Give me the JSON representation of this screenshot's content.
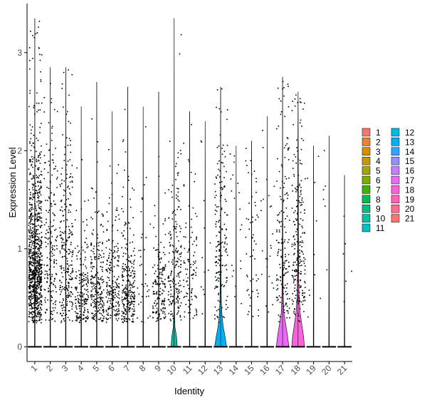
{
  "chart_data": {
    "type": "violin",
    "title": "",
    "xlabel": "Identity",
    "ylabel": "Expression Level",
    "ylim": [
      -0.15,
      3.5
    ],
    "yticks": [
      0,
      1,
      2,
      3
    ],
    "ytick_labels": [
      "0",
      "1",
      "2",
      "3"
    ],
    "grid": false,
    "legend": {
      "position": "right",
      "columns": 2
    },
    "categories": [
      {
        "name": "1",
        "color": "#F8766D",
        "max": 3.35,
        "n_expr": 900,
        "center": 0.85,
        "spread": 0.55,
        "violin": [
          [
            0,
            0.04
          ]
        ]
      },
      {
        "name": "2",
        "color": "#EA8331",
        "max": 2.85,
        "n_expr": 190,
        "center": 0.85,
        "spread": 0.6,
        "violin": [
          [
            0,
            0.04
          ]
        ]
      },
      {
        "name": "3",
        "color": "#D89000",
        "max": 2.85,
        "n_expr": 260,
        "center": 0.9,
        "spread": 0.6,
        "violin": [
          [
            0,
            0.04
          ]
        ]
      },
      {
        "name": "4",
        "color": "#C09B00",
        "max": 2.45,
        "n_expr": 190,
        "center": 0.55,
        "spread": 0.5,
        "violin": [
          [
            0,
            0.04
          ]
        ]
      },
      {
        "name": "5",
        "color": "#A3A500",
        "max": 2.7,
        "n_expr": 230,
        "center": 0.6,
        "spread": 0.5,
        "violin": [
          [
            0,
            0.04
          ]
        ]
      },
      {
        "name": "6",
        "color": "#7CAE00",
        "max": 2.4,
        "n_expr": 210,
        "center": 0.6,
        "spread": 0.5,
        "violin": [
          [
            0,
            0.04
          ]
        ]
      },
      {
        "name": "7",
        "color": "#39B600",
        "max": 2.65,
        "n_expr": 260,
        "center": 0.6,
        "spread": 0.5,
        "violin": [
          [
            0,
            0.04
          ]
        ]
      },
      {
        "name": "8",
        "color": "#00BB4E",
        "max": 2.45,
        "n_expr": 35,
        "center": 0.8,
        "spread": 0.6,
        "violin": [
          [
            0,
            0.04
          ]
        ]
      },
      {
        "name": "9",
        "color": "#00BF7D",
        "max": 2.6,
        "n_expr": 170,
        "center": 0.6,
        "spread": 0.45,
        "violin": [
          [
            0,
            0.04
          ]
        ]
      },
      {
        "name": "10",
        "color": "#00C1A3",
        "max": 3.35,
        "n_expr": 200,
        "center": 0.75,
        "spread": 0.55,
        "violin": [
          [
            0,
            0.45
          ],
          [
            0.1,
            0.35
          ],
          [
            0.2,
            0.12
          ],
          [
            0.35,
            0.05
          ],
          [
            0.6,
            0.03
          ],
          [
            1.0,
            0.015
          ],
          [
            2.0,
            0.01
          ],
          [
            3.35,
            0.0
          ]
        ]
      },
      {
        "name": "11",
        "color": "#00BFC4",
        "max": 2.4,
        "n_expr": 100,
        "center": 0.75,
        "spread": 0.5,
        "violin": [
          [
            0,
            0.04
          ]
        ]
      },
      {
        "name": "12",
        "color": "#00BAE0",
        "max": 2.3,
        "n_expr": 12,
        "center": 1.2,
        "spread": 0.6,
        "violin": [
          [
            0,
            0.04
          ]
        ]
      },
      {
        "name": "13",
        "color": "#00B0F6",
        "max": 2.65,
        "n_expr": 170,
        "center": 1.0,
        "spread": 0.55,
        "violin": [
          [
            0,
            0.85
          ],
          [
            0.1,
            0.65
          ],
          [
            0.2,
            0.38
          ],
          [
            0.3,
            0.22
          ],
          [
            0.45,
            0.1
          ],
          [
            0.7,
            0.06
          ],
          [
            1.1,
            0.04
          ],
          [
            1.5,
            0.02
          ],
          [
            2.0,
            0.01
          ],
          [
            2.65,
            0.0
          ]
        ]
      },
      {
        "name": "14",
        "color": "#35A2FF",
        "max": 2.05,
        "n_expr": 20,
        "center": 1.0,
        "spread": 0.6,
        "violin": [
          [
            0,
            0.04
          ]
        ]
      },
      {
        "name": "15",
        "color": "#9590FF",
        "max": 2.1,
        "n_expr": 55,
        "center": 1.0,
        "spread": 0.5,
        "violin": [
          [
            0,
            0.04
          ]
        ]
      },
      {
        "name": "16",
        "color": "#C77CFF",
        "max": 2.35,
        "n_expr": 25,
        "center": 1.2,
        "spread": 0.6,
        "violin": [
          [
            0,
            0.04
          ]
        ]
      },
      {
        "name": "17",
        "color": "#E76BF3",
        "max": 2.75,
        "n_expr": 160,
        "center": 1.0,
        "spread": 0.6,
        "violin": [
          [
            0,
            0.9
          ],
          [
            0.12,
            0.7
          ],
          [
            0.25,
            0.4
          ],
          [
            0.35,
            0.18
          ],
          [
            0.5,
            0.1
          ],
          [
            0.8,
            0.06
          ],
          [
            1.2,
            0.04
          ],
          [
            1.8,
            0.02
          ],
          [
            2.75,
            0.0
          ]
        ]
      },
      {
        "name": "18",
        "color": "#FA62DB",
        "max": 2.6,
        "n_expr": 230,
        "center": 1.0,
        "spread": 0.55,
        "violin": [
          [
            0,
            0.9
          ],
          [
            0.1,
            0.8
          ],
          [
            0.22,
            0.55
          ],
          [
            0.35,
            0.3
          ],
          [
            0.5,
            0.15
          ],
          [
            0.8,
            0.07
          ],
          [
            1.2,
            0.05
          ],
          [
            1.6,
            0.04
          ],
          [
            1.95,
            0.03
          ],
          [
            2.3,
            0.015
          ],
          [
            2.6,
            0.0
          ]
        ]
      },
      {
        "name": "19",
        "color": "#FF62BC",
        "max": 2.05,
        "n_expr": 10,
        "center": 1.0,
        "spread": 0.6,
        "violin": [
          [
            0,
            0.04
          ]
        ]
      },
      {
        "name": "20",
        "color": "#FF6C91",
        "max": 2.15,
        "n_expr": 6,
        "center": 1.5,
        "spread": 0.5,
        "violin": [
          [
            0,
            0.04
          ]
        ]
      },
      {
        "name": "21",
        "color": "#F8766D",
        "max": 1.75,
        "n_expr": 6,
        "center": 0.8,
        "spread": 0.5,
        "violin": [
          [
            0,
            0.04
          ]
        ]
      }
    ]
  }
}
